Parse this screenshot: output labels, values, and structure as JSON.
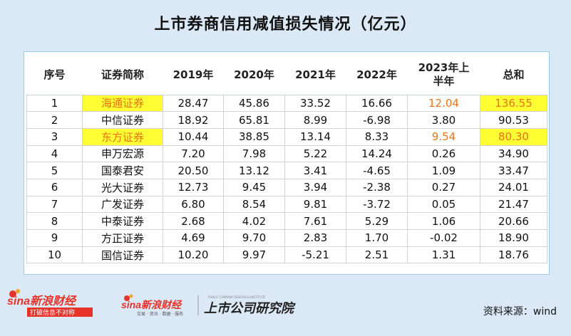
{
  "title": "上市券商信用减值损失情况（亿元）",
  "table": {
    "headers": [
      "序号",
      "证券简称",
      "2019年",
      "2020年",
      "2021年",
      "2022年",
      "2023年上半年",
      "总和"
    ],
    "rows": [
      {
        "no": "1",
        "name": "海通证券",
        "y2019": "28.47",
        "y2020": "45.86",
        "y2021": "33.52",
        "y2022": "16.66",
        "h2023": "12.04",
        "total": "136.55"
      },
      {
        "no": "2",
        "name": "中信证券",
        "y2019": "18.92",
        "y2020": "65.81",
        "y2021": "8.99",
        "y2022": "-6.98",
        "h2023": "3.80",
        "total": "90.53"
      },
      {
        "no": "3",
        "name": "东方证券",
        "y2019": "10.44",
        "y2020": "38.85",
        "y2021": "13.14",
        "y2022": "8.33",
        "h2023": "9.54",
        "total": "80.30"
      },
      {
        "no": "4",
        "name": "申万宏源",
        "y2019": "7.20",
        "y2020": "7.98",
        "y2021": "5.22",
        "y2022": "14.24",
        "h2023": "0.26",
        "total": "34.90"
      },
      {
        "no": "5",
        "name": "国泰君安",
        "y2019": "20.50",
        "y2020": "13.12",
        "y2021": "3.41",
        "y2022": "-4.65",
        "h2023": "1.09",
        "total": "33.47"
      },
      {
        "no": "6",
        "name": "光大证券",
        "y2019": "12.73",
        "y2020": "9.45",
        "y2021": "3.94",
        "y2022": "-2.38",
        "h2023": "0.27",
        "total": "24.01"
      },
      {
        "no": "7",
        "name": "广发证券",
        "y2019": "6.80",
        "y2020": "8.54",
        "y2021": "9.81",
        "y2022": "-3.72",
        "h2023": "0.05",
        "total": "21.47"
      },
      {
        "no": "8",
        "name": "中泰证券",
        "y2019": "2.68",
        "y2020": "4.02",
        "y2021": "7.61",
        "y2022": "5.29",
        "h2023": "1.06",
        "total": "20.66"
      },
      {
        "no": "9",
        "name": "方正证券",
        "y2019": "4.69",
        "y2020": "9.70",
        "y2021": "2.83",
        "y2022": "1.70",
        "h2023": "-0.02",
        "total": "18.90"
      },
      {
        "no": "10",
        "name": "国信证券",
        "y2019": "10.20",
        "y2020": "9.97",
        "y2021": "-5.21",
        "y2022": "2.51",
        "h2023": "1.31",
        "total": "18.76"
      }
    ]
  },
  "highlight_color": "#ffff33",
  "accent_text_color": "#e8731a",
  "logos": {
    "sina1_main": "sina新浪财经",
    "sina1_tag": "打破信息不对称",
    "sina2_main": "sina新浪财经",
    "sina2_tag": "交易 · 资讯 · 数据 · 服务",
    "institute_small": "PUBLIC COMPANY RESEARCH INSTITUTE",
    "institute": "上市公司研究院"
  },
  "source": "资料来源：wind"
}
